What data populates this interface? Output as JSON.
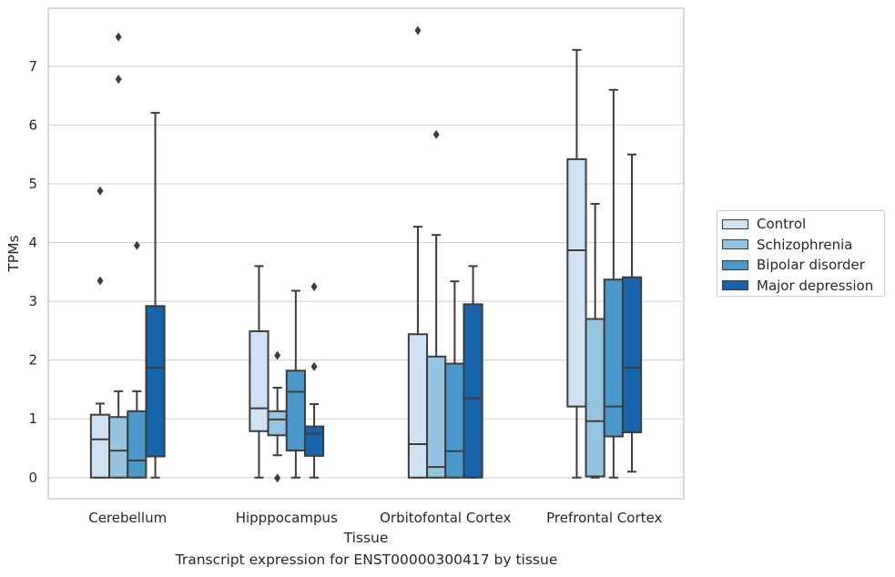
{
  "caption": "Transcript expression for ENST00000300417 by tissue",
  "chart_data": {
    "type": "boxplot",
    "title": "",
    "xlabel": "Tissue",
    "ylabel": "TPMs",
    "ylim": [
      -0.36,
      7.99
    ],
    "yticks": [
      0,
      1,
      2,
      3,
      4,
      5,
      6,
      7
    ],
    "grid": "horizontal",
    "legend_position": "right",
    "categories": [
      "Cerebellum",
      "Hipppocampus",
      "Orbitofontal Cortex",
      "Prefrontal Cortex"
    ],
    "series": [
      {
        "name": "Control",
        "color": "#d0e1f2",
        "boxes": [
          {
            "whisker_low": 0.0,
            "q1": 0.0,
            "median": 0.65,
            "q3": 1.07,
            "whisker_high": 1.26,
            "outliers": [
              3.35,
              4.88
            ]
          },
          {
            "whisker_low": 0.0,
            "q1": 0.79,
            "median": 1.18,
            "q3": 2.49,
            "whisker_high": 3.6,
            "outliers": []
          },
          {
            "whisker_low": 0.0,
            "q1": 0.0,
            "median": 0.57,
            "q3": 2.44,
            "whisker_high": 4.27,
            "outliers": [
              7.61
            ]
          },
          {
            "whisker_low": 0.0,
            "q1": 1.21,
            "median": 3.87,
            "q3": 5.42,
            "whisker_high": 7.28,
            "outliers": []
          }
        ]
      },
      {
        "name": "Schizophrenia",
        "color": "#94c4df",
        "boxes": [
          {
            "whisker_low": 0.0,
            "q1": 0.0,
            "median": 0.46,
            "q3": 1.03,
            "whisker_high": 1.47,
            "outliers": [
              6.78,
              7.5
            ]
          },
          {
            "whisker_low": 0.38,
            "q1": 0.72,
            "median": 0.99,
            "q3": 1.13,
            "whisker_high": 1.53,
            "outliers": [
              -0.01,
              2.08
            ]
          },
          {
            "whisker_low": 0.0,
            "q1": 0.0,
            "median": 0.18,
            "q3": 2.06,
            "whisker_high": 4.13,
            "outliers": [
              5.84
            ]
          },
          {
            "whisker_low": 0.0,
            "q1": 0.02,
            "median": 0.96,
            "q3": 2.7,
            "whisker_high": 4.66,
            "outliers": []
          }
        ]
      },
      {
        "name": "Bipolar disorder",
        "color": "#4a98c9",
        "boxes": [
          {
            "whisker_low": 0.0,
            "q1": 0.0,
            "median": 0.29,
            "q3": 1.13,
            "whisker_high": 1.47,
            "outliers": [
              3.95
            ]
          },
          {
            "whisker_low": 0.0,
            "q1": 0.46,
            "median": 1.46,
            "q3": 1.82,
            "whisker_high": 3.18,
            "outliers": []
          },
          {
            "whisker_low": 0.0,
            "q1": 0.0,
            "median": 0.45,
            "q3": 1.94,
            "whisker_high": 3.34,
            "outliers": []
          },
          {
            "whisker_low": 0.0,
            "q1": 0.7,
            "median": 1.21,
            "q3": 3.37,
            "whisker_high": 6.6,
            "outliers": []
          }
        ]
      },
      {
        "name": "Major depression",
        "color": "#1764ab",
        "boxes": [
          {
            "whisker_low": 0.0,
            "q1": 0.36,
            "median": 1.87,
            "q3": 2.92,
            "whisker_high": 6.21,
            "outliers": []
          },
          {
            "whisker_low": 0.0,
            "q1": 0.37,
            "median": 0.75,
            "q3": 0.87,
            "whisker_high": 1.25,
            "outliers": [
              1.89,
              3.25
            ]
          },
          {
            "whisker_low": 0.0,
            "q1": 0.0,
            "median": 1.35,
            "q3": 2.95,
            "whisker_high": 3.6,
            "outliers": []
          },
          {
            "whisker_low": 0.1,
            "q1": 0.77,
            "median": 1.87,
            "q3": 3.41,
            "whisker_high": 5.5,
            "outliers": []
          }
        ]
      }
    ]
  }
}
